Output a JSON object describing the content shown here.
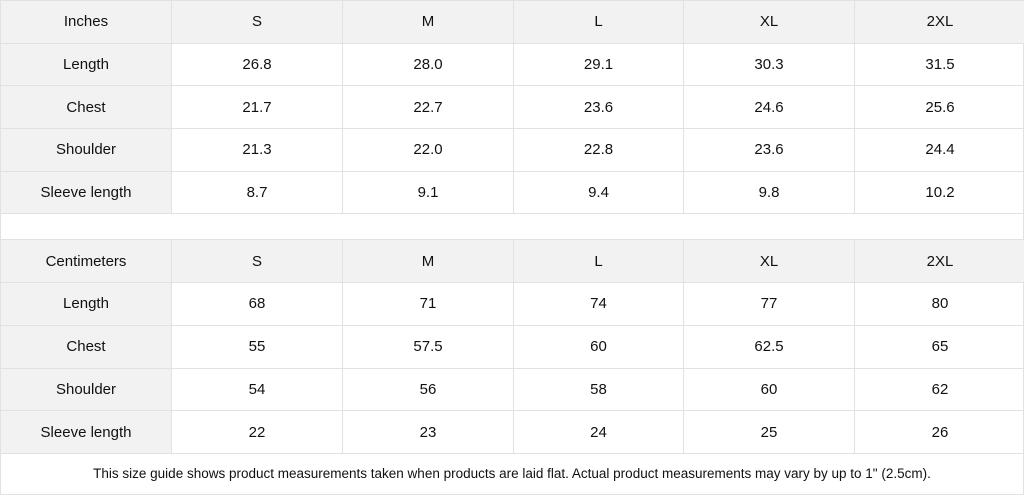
{
  "inches": {
    "header": [
      "Inches",
      "S",
      "M",
      "L",
      "XL",
      "2XL"
    ],
    "rows": [
      [
        "Length",
        "26.8",
        "28.0",
        "29.1",
        "30.3",
        "31.5"
      ],
      [
        "Chest",
        "21.7",
        "22.7",
        "23.6",
        "24.6",
        "25.6"
      ],
      [
        "Shoulder",
        "21.3",
        "22.0",
        "22.8",
        "23.6",
        "24.4"
      ],
      [
        "Sleeve length",
        "8.7",
        "9.1",
        "9.4",
        "9.8",
        "10.2"
      ]
    ]
  },
  "centimeters": {
    "header": [
      "Centimeters",
      "S",
      "M",
      "L",
      "XL",
      "2XL"
    ],
    "rows": [
      [
        "Length",
        "68",
        "71",
        "74",
        "77",
        "80"
      ],
      [
        "Chest",
        "55",
        "57.5",
        "60",
        "62.5",
        "65"
      ],
      [
        "Shoulder",
        "54",
        "56",
        "58",
        "60",
        "62"
      ],
      [
        "Sleeve length",
        "22",
        "23",
        "24",
        "25",
        "26"
      ]
    ]
  },
  "note": "This size guide shows product measurements taken when products are laid flat.  Actual product measurements may vary by up to 1\" (2.5cm)."
}
